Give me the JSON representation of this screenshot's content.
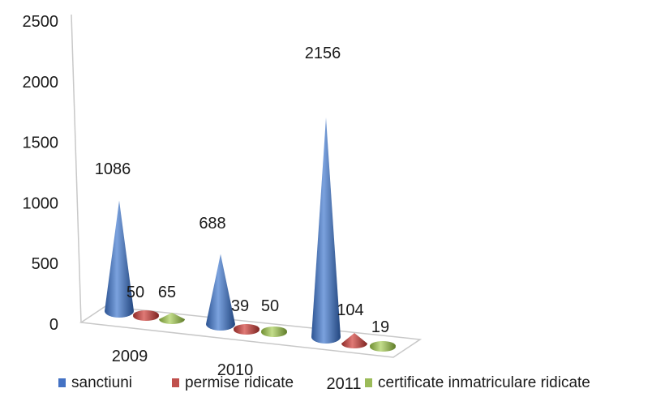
{
  "chart_data": {
    "type": "bar",
    "style": "3d-cone",
    "title": "",
    "xlabel": "",
    "ylabel": "",
    "ylim": [
      0,
      2500
    ],
    "yticks": [
      "0",
      "500",
      "1000",
      "1500",
      "2000",
      "2500"
    ],
    "grid": false,
    "legend_position": "bottom",
    "categories": [
      "2009",
      "2010",
      "2011"
    ],
    "series": [
      {
        "name": "sanctiuni",
        "values": [
          1086,
          688,
          2156
        ],
        "color": "#4472c4"
      },
      {
        "name": "permise ridicate",
        "values": [
          50,
          39,
          104
        ],
        "color": "#c0504d"
      },
      {
        "name": "certificate inmatriculare ridicate",
        "values": [
          65,
          50,
          19
        ],
        "color": "#9bbb59"
      }
    ]
  }
}
